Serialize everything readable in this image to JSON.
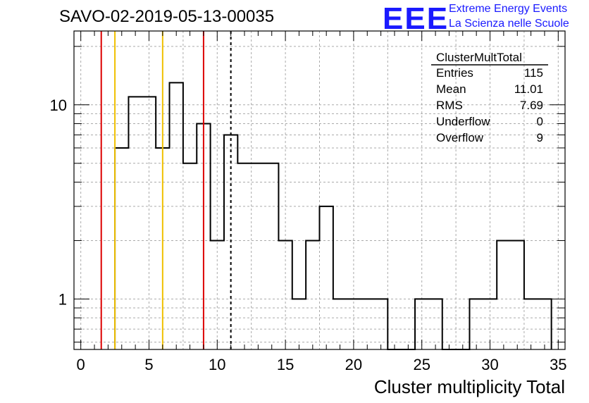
{
  "chart_data": {
    "type": "histogram",
    "title": "SAVO-02-2019-05-13-00035",
    "xlabel": "Cluster multiplicity Total",
    "ylabel": "",
    "xlim": [
      -0.5,
      35.5
    ],
    "ylim": [
      0.55,
      24
    ],
    "yscale": "log",
    "grid": true,
    "x_ticks": [
      0,
      5,
      10,
      15,
      20,
      25,
      30,
      35
    ],
    "y_ticks": [
      1,
      10
    ],
    "bins": {
      "edges_start": 2.5,
      "width": 1,
      "values": [
        6,
        11,
        11,
        6,
        13,
        5,
        8,
        2,
        7,
        5,
        5,
        5,
        2,
        1,
        2,
        3,
        1,
        1,
        1,
        1,
        0,
        0,
        1,
        1,
        0,
        0,
        1,
        1,
        2,
        2,
        1,
        1
      ]
    },
    "vertical_lines": [
      {
        "x": 1.5,
        "color": "#dd0000",
        "style": "solid"
      },
      {
        "x": 2.5,
        "color": "#f0c000",
        "style": "solid"
      },
      {
        "x": 6.0,
        "color": "#f0c000",
        "style": "solid"
      },
      {
        "x": 9.0,
        "color": "#dd0000",
        "style": "solid"
      },
      {
        "x": 11.0,
        "color": "#000000",
        "style": "dashed"
      }
    ],
    "stats": {
      "name": "ClusterMultTotal",
      "rows": [
        {
          "label": "Entries",
          "value": "115"
        },
        {
          "label": "Mean",
          "value": "11.01"
        },
        {
          "label": "RMS",
          "value": "7.69"
        },
        {
          "label": "Underflow",
          "value": "0"
        },
        {
          "label": "Overflow",
          "value": "9"
        }
      ]
    }
  },
  "logo": {
    "mark": "EEE",
    "line1": "Extreme Energy Events",
    "line2": "La Scienza nelle Scuole",
    "color": "#1a1aff"
  }
}
